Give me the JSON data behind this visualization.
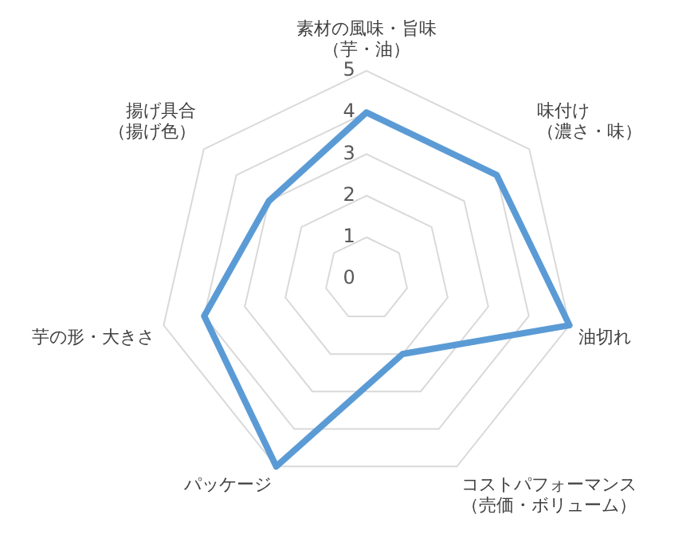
{
  "chart_data": {
    "type": "radar",
    "categories": [
      "素材の風味・旨味（芋・油）",
      "味付け（濃さ・味）",
      "油切れ",
      "コストパフォーマンス（売価・ボリューム）",
      "パッケージ",
      "芋の形・大きさ",
      "揚げ具合（揚げ色）"
    ],
    "series": [
      {
        "color": "#5b9bd5",
        "values": [
          4,
          4,
          5,
          2,
          5,
          4,
          3
        ]
      }
    ],
    "ylim": [
      0,
      5
    ],
    "yticks": [
      0,
      1,
      2,
      3,
      4,
      5
    ],
    "grid": true,
    "legend": false,
    "marker": "none"
  }
}
